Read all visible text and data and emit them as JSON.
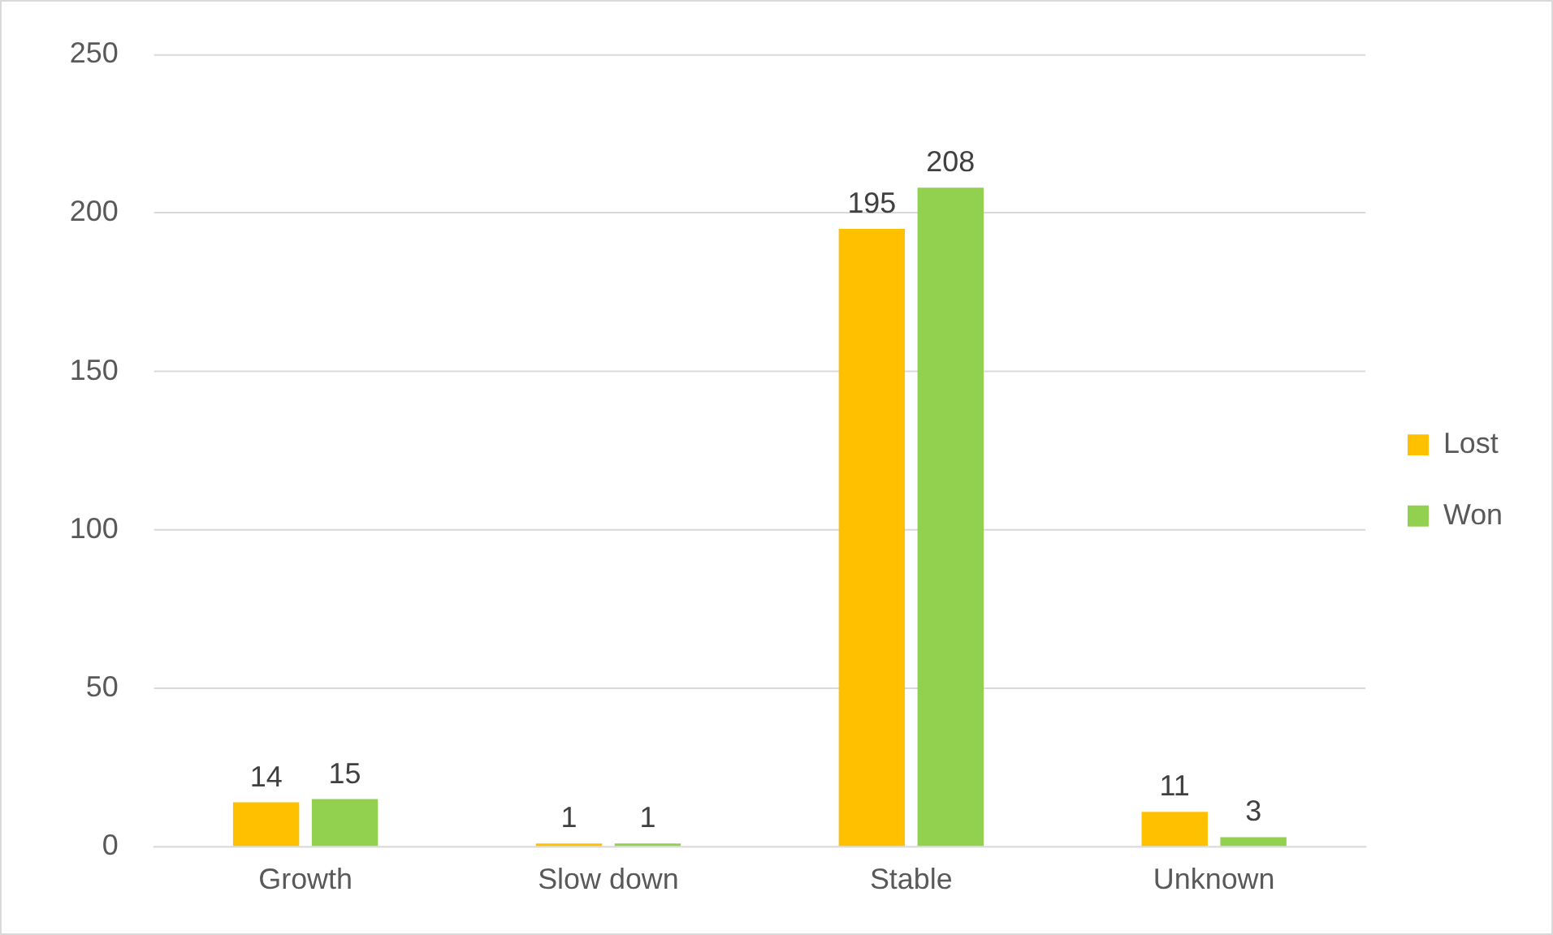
{
  "chart_data": {
    "type": "bar",
    "categories": [
      "Growth",
      "Slow down",
      "Stable",
      "Unknown"
    ],
    "series": [
      {
        "name": "Lost",
        "color": "#ffc000",
        "values": [
          14,
          1,
          195,
          11
        ]
      },
      {
        "name": "Won",
        "color": "#92d050",
        "values": [
          15,
          1,
          208,
          3
        ]
      }
    ],
    "ylim": [
      0,
      250
    ],
    "yticks": [
      0,
      50,
      100,
      150,
      200,
      250
    ],
    "grid": "y",
    "legend": "right",
    "data_labels": true
  }
}
